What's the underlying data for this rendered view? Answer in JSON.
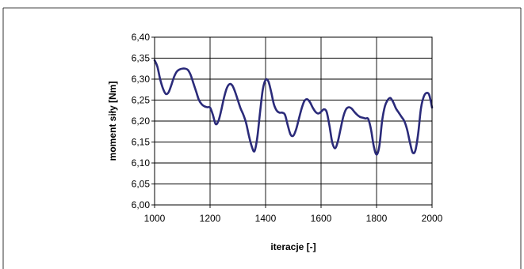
{
  "chart_data": {
    "type": "line",
    "xlabel": "iteracje [-]",
    "ylabel": "moment siły [Nm]",
    "xlim": [
      1000,
      2000
    ],
    "ylim": [
      6.0,
      6.4
    ],
    "x_ticks": [
      1000,
      1200,
      1400,
      1600,
      1800,
      2000
    ],
    "x_tick_labels": [
      "1000",
      "1200",
      "1400",
      "1600",
      "1800",
      "2000"
    ],
    "y_ticks": [
      6.0,
      6.05,
      6.1,
      6.15,
      6.2,
      6.25,
      6.3,
      6.35,
      6.4
    ],
    "y_tick_labels": [
      "6,00",
      "6,05",
      "6,10",
      "6,15",
      "6,20",
      "6,25",
      "6,30",
      "6,35",
      "6,40"
    ],
    "grid": true,
    "legend": "none",
    "colors": {
      "line": "#2b2b7a",
      "grid": "#000000",
      "plot_background": "#ffffff",
      "frame": "#000000"
    },
    "series": [
      {
        "x": [
          1000,
          1010,
          1020,
          1030,
          1040,
          1050,
          1060,
          1070,
          1080,
          1090,
          1100,
          1110,
          1120,
          1130,
          1140,
          1150,
          1160,
          1170,
          1180,
          1190,
          1200,
          1210,
          1220,
          1230,
          1240,
          1250,
          1260,
          1270,
          1280,
          1290,
          1300,
          1310,
          1320,
          1330,
          1340,
          1350,
          1360,
          1370,
          1380,
          1390,
          1400,
          1410,
          1420,
          1430,
          1440,
          1450,
          1460,
          1470,
          1480,
          1490,
          1500,
          1510,
          1520,
          1530,
          1540,
          1550,
          1560,
          1570,
          1580,
          1590,
          1600,
          1610,
          1620,
          1630,
          1640,
          1650,
          1660,
          1670,
          1680,
          1690,
          1700,
          1710,
          1720,
          1730,
          1740,
          1750,
          1760,
          1770,
          1780,
          1790,
          1800,
          1810,
          1820,
          1830,
          1840,
          1850,
          1860,
          1870,
          1880,
          1890,
          1900,
          1910,
          1920,
          1930,
          1940,
          1950,
          1960,
          1970,
          1980,
          1990,
          2000
        ],
        "y": [
          6.345,
          6.33,
          6.3,
          6.278,
          6.265,
          6.268,
          6.285,
          6.305,
          6.318,
          6.323,
          6.325,
          6.325,
          6.322,
          6.31,
          6.29,
          6.27,
          6.25,
          6.24,
          6.235,
          6.233,
          6.232,
          6.215,
          6.193,
          6.2,
          6.225,
          6.255,
          6.278,
          6.288,
          6.285,
          6.27,
          6.25,
          6.23,
          6.215,
          6.195,
          6.165,
          6.14,
          6.128,
          6.16,
          6.22,
          6.275,
          6.298,
          6.295,
          6.27,
          6.24,
          6.225,
          6.22,
          6.22,
          6.215,
          6.19,
          6.168,
          6.165,
          6.18,
          6.205,
          6.23,
          6.248,
          6.252,
          6.245,
          6.232,
          6.222,
          6.218,
          6.222,
          6.228,
          6.222,
          6.19,
          6.15,
          6.135,
          6.15,
          6.18,
          6.21,
          6.228,
          6.233,
          6.23,
          6.222,
          6.215,
          6.21,
          6.208,
          6.206,
          6.205,
          6.18,
          6.14,
          6.12,
          6.14,
          6.2,
          6.235,
          6.25,
          6.255,
          6.245,
          6.23,
          6.22,
          6.21,
          6.2,
          6.18,
          6.15,
          6.125,
          6.13,
          6.17,
          6.23,
          6.258,
          6.267,
          6.262,
          6.232
        ]
      }
    ]
  }
}
